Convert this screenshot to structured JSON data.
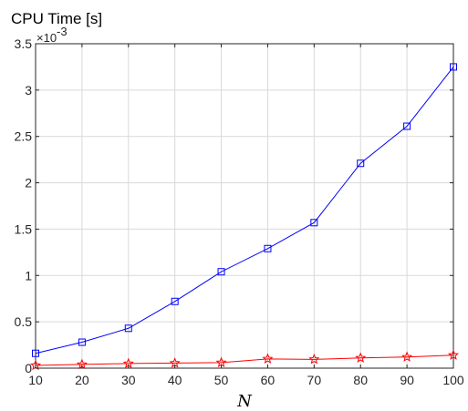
{
  "chart_data": {
    "type": "line",
    "title": "CPU Time [s]",
    "xlabel": "N",
    "ylabel": "",
    "y_exponent_label": "×10",
    "y_exponent_power": "-3",
    "x": [
      10,
      20,
      30,
      40,
      50,
      60,
      70,
      80,
      90,
      100
    ],
    "xlim": [
      10,
      100
    ],
    "ylim": [
      0,
      3.5
    ],
    "x_ticks": [
      "10",
      "20",
      "30",
      "40",
      "50",
      "60",
      "70",
      "80",
      "90",
      "100"
    ],
    "y_ticks": [
      "0",
      "0.5",
      "1",
      "1.5",
      "2",
      "2.5",
      "3",
      "3.5"
    ],
    "grid": true,
    "series": [
      {
        "color": "#0000ff",
        "marker": "square",
        "values": [
          0.16,
          0.28,
          0.43,
          0.72,
          1.04,
          1.29,
          1.57,
          2.21,
          2.61,
          3.25
        ]
      },
      {
        "color": "#ff0000",
        "marker": "star",
        "values": [
          0.03,
          0.04,
          0.05,
          0.055,
          0.06,
          0.1,
          0.095,
          0.11,
          0.12,
          0.14
        ]
      }
    ]
  }
}
